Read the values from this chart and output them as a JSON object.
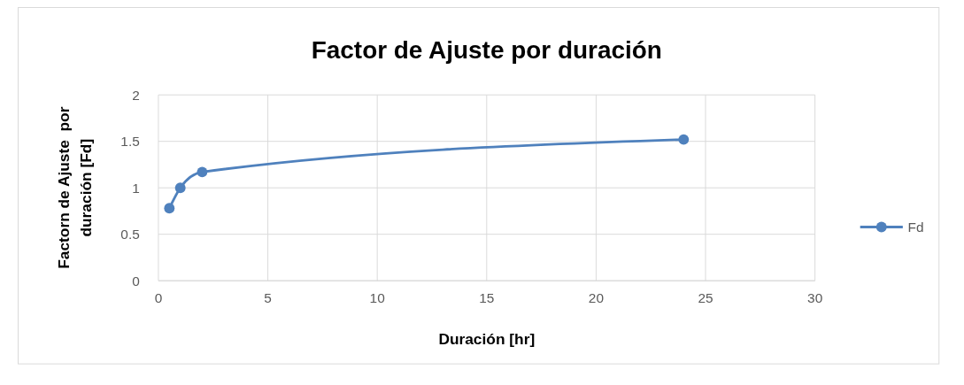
{
  "chart_data": {
    "type": "line",
    "title": "Factor de Ajuste por duración",
    "xlabel": "Duración [hr]",
    "ylabel": "Factorn de Ajuste  por duración [Fd]",
    "x": [
      0.5,
      1,
      2,
      24
    ],
    "series": [
      {
        "name": "Fd",
        "color": "#4f81bd",
        "values": [
          0.78,
          1.0,
          1.17,
          1.52
        ]
      }
    ],
    "xlim": [
      0,
      30
    ],
    "xticks": [
      0,
      5,
      10,
      15,
      20,
      25,
      30
    ],
    "ylim": [
      0,
      2
    ],
    "yticks": [
      0,
      0.5,
      1,
      1.5,
      2
    ],
    "grid": true,
    "legend": "right",
    "marker": "circle",
    "line_style": "solid"
  }
}
